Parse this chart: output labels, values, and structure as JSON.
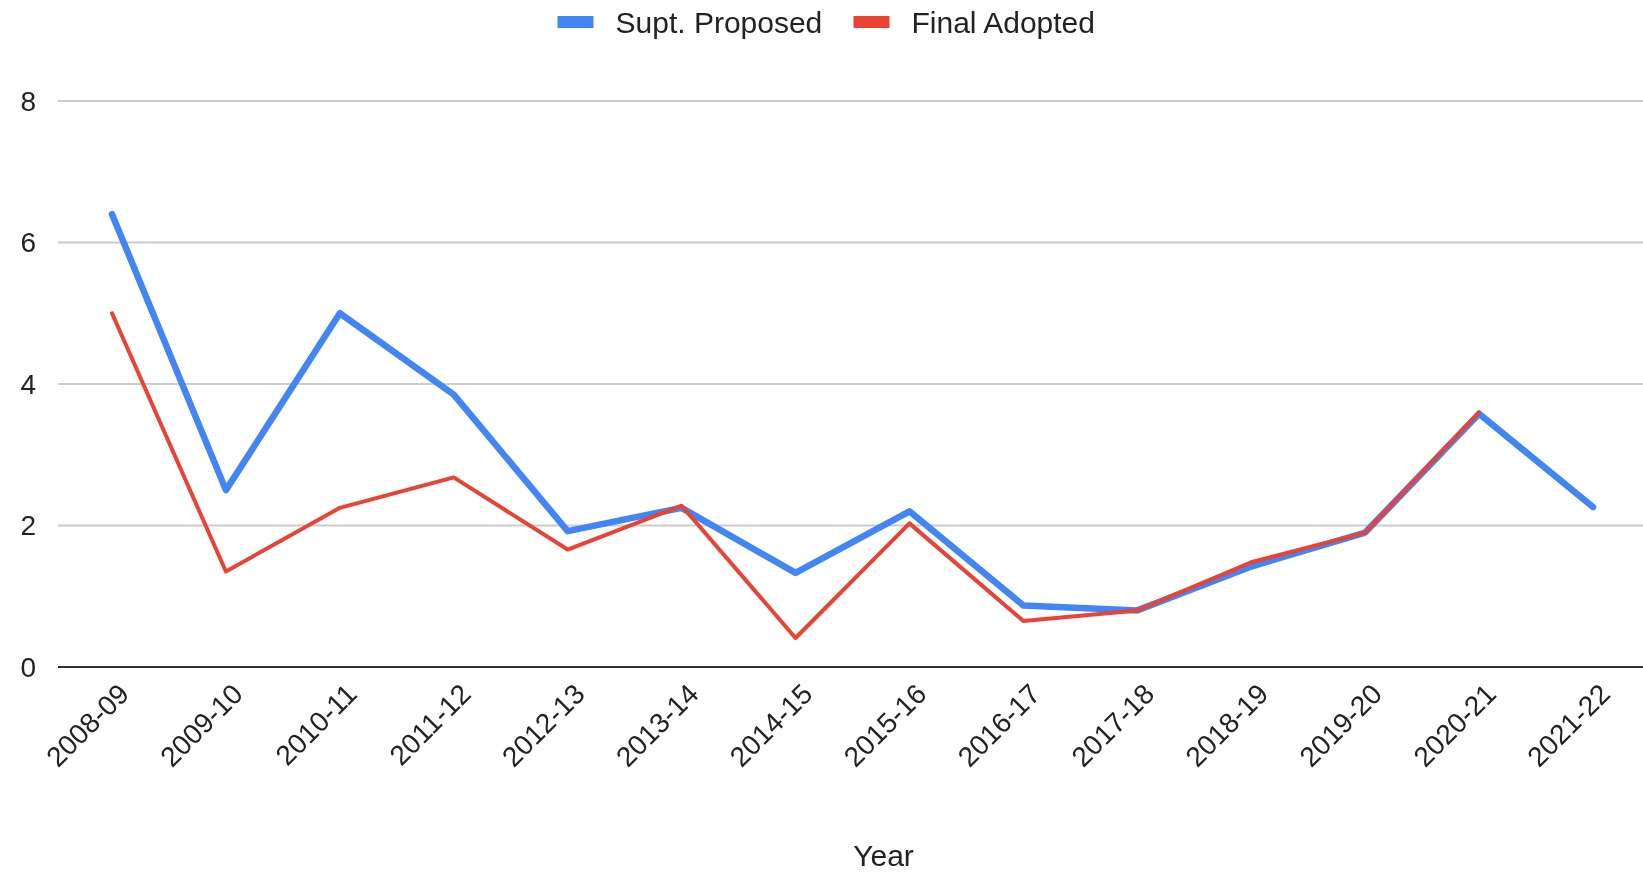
{
  "chart_data": {
    "type": "line",
    "xlabel": "Year",
    "categories": [
      "2008-09",
      "2009-10",
      "2010-11",
      "2011-12",
      "2012-13",
      "2013-14",
      "2014-15",
      "2015-16",
      "2016-17",
      "2017-18",
      "2018-19",
      "2019-20",
      "2020-21",
      "2021-22"
    ],
    "series": [
      {
        "name": "Supt. Proposed",
        "color": "#4285f4",
        "values": [
          6.4,
          2.5,
          5.0,
          3.85,
          1.92,
          2.25,
          1.33,
          2.2,
          0.87,
          0.8,
          1.42,
          1.9,
          3.58,
          2.26
        ]
      },
      {
        "name": "Final Adopted",
        "color": "#ea4335",
        "values": [
          5.0,
          1.35,
          2.25,
          2.68,
          1.66,
          2.28,
          0.41,
          2.03,
          0.65,
          0.8,
          1.48,
          1.9,
          3.6,
          null
        ]
      }
    ],
    "ylim": [
      0,
      8
    ],
    "yticks": [
      0,
      2,
      4,
      6,
      8
    ],
    "grid": "y",
    "legend": "top",
    "line_style": "solid",
    "marker": "none"
  }
}
